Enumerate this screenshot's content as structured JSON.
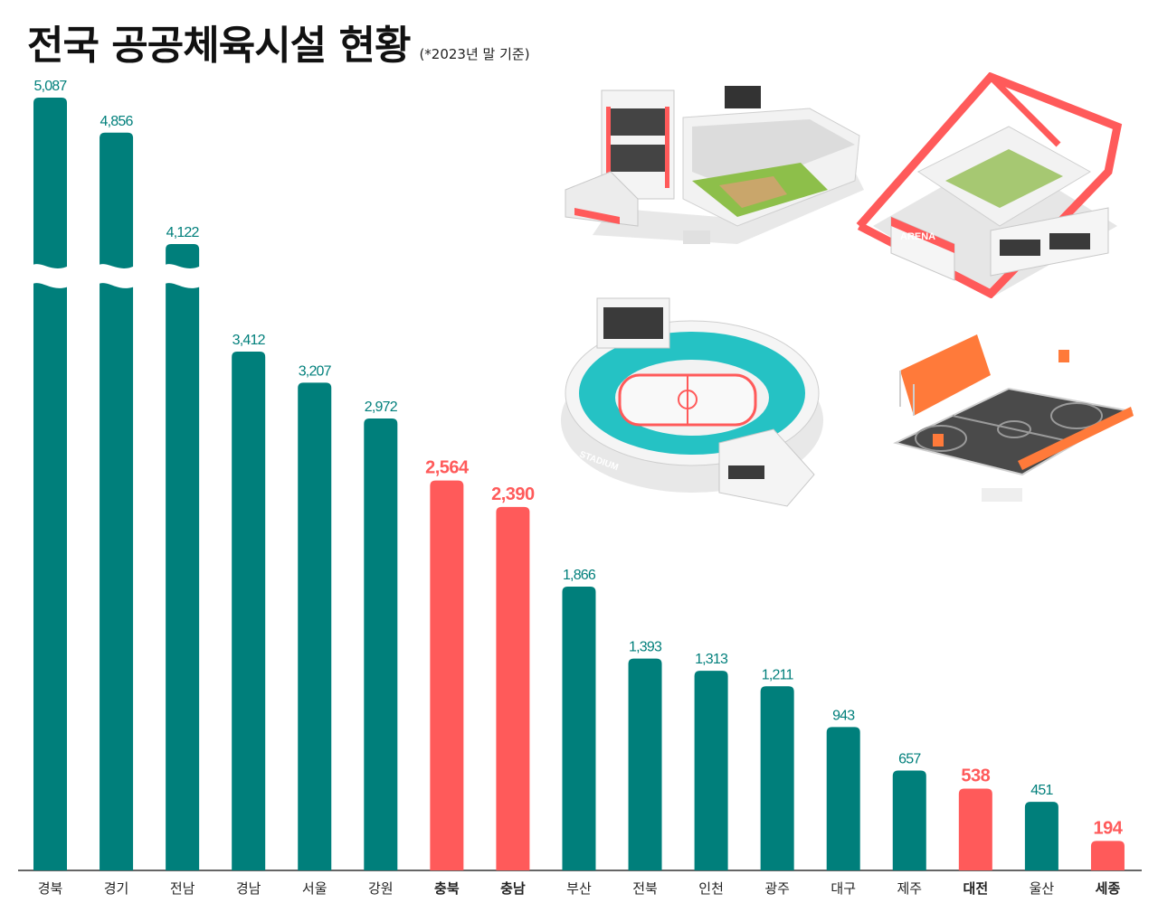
{
  "chart_data": {
    "type": "bar",
    "title": "전국 공공체육시설 현황",
    "subtitle": "(*2023년 말 기준)",
    "categories": [
      "경북",
      "경기",
      "전남",
      "경남",
      "서울",
      "강원",
      "충북",
      "충남",
      "부산",
      "전북",
      "인천",
      "광주",
      "대구",
      "제주",
      "대전",
      "울산",
      "세종"
    ],
    "values": [
      5087,
      4856,
      4122,
      3412,
      3207,
      2972,
      2564,
      2390,
      1866,
      1393,
      1313,
      1211,
      943,
      657,
      538,
      451,
      194
    ],
    "value_labels": [
      "5,087",
      "4,856",
      "4,122",
      "3,412",
      "3,207",
      "2,972",
      "2,564",
      "2,390",
      "1,866",
      "1,393",
      "1,313",
      "1,211",
      "943",
      "657",
      "538",
      "451",
      "194"
    ],
    "highlighted": [
      "충북",
      "충남",
      "대전",
      "세종"
    ],
    "axis_break": true,
    "xlabel": "",
    "ylabel": "",
    "grid": false,
    "colors": {
      "default": "#007f7b",
      "highlight": "#ff5a5a",
      "axis": "#333333"
    }
  },
  "illustrations": [
    {
      "name": "baseball-stadium-illustration"
    },
    {
      "name": "arena-illustration",
      "sign": "ARENA"
    },
    {
      "name": "ice-rink-stadium-illustration",
      "sign": "STADIUM"
    },
    {
      "name": "basketball-court-illustration"
    }
  ]
}
